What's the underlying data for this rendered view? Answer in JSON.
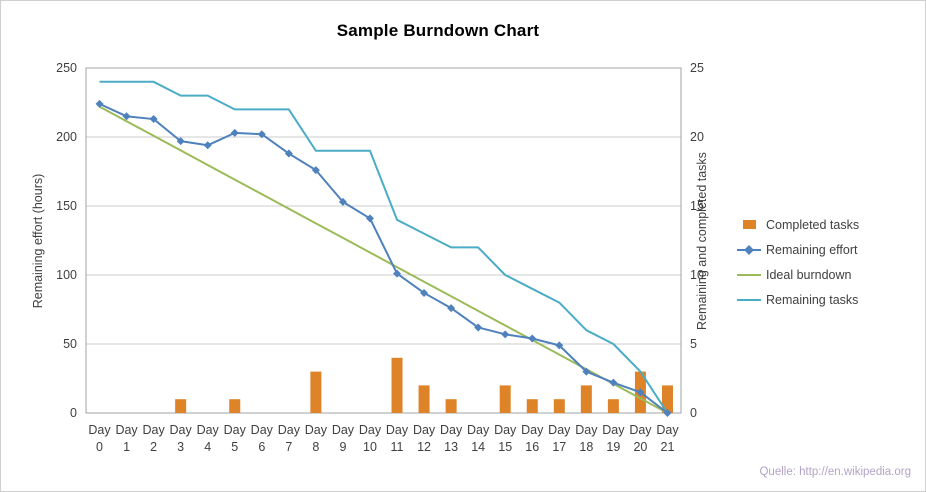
{
  "source_note": "Quelle: http://en.wikipedia.org",
  "chart_data": {
    "type": "line",
    "title": "Sample Burndown Chart",
    "xlabel": "",
    "ylabel_left": "Remaining effort (hours)",
    "ylabel_right": "Remaining and completed tasks",
    "ylim_left": [
      0,
      250
    ],
    "yticks_left": [
      0,
      50,
      100,
      150,
      200,
      250
    ],
    "ylim_right": [
      0,
      25
    ],
    "yticks_right": [
      0,
      5,
      10,
      15,
      20,
      25
    ],
    "grid": true,
    "legend_position": "right",
    "x_categories": [
      "Day 0",
      "Day 1",
      "Day 2",
      "Day 3",
      "Day 4",
      "Day 5",
      "Day 6",
      "Day 7",
      "Day 8",
      "Day 9",
      "Day 10",
      "Day 11",
      "Day 12",
      "Day 13",
      "Day 14",
      "Day 15",
      "Day 16",
      "Day 17",
      "Day 18",
      "Day 19",
      "Day 20",
      "Day 21"
    ],
    "colors": {
      "grid": "#cdcdcd",
      "plot_border": "#a3a3a3",
      "axis_text": "#3f3f3f",
      "title": "#000000",
      "source_note": "#b3a2c7"
    },
    "series": [
      {
        "name": "Completed tasks",
        "type": "bar",
        "axis": "right",
        "color": "#de8327",
        "z": 1,
        "values": [
          0,
          0,
          0,
          1,
          0,
          1,
          0,
          0,
          3,
          0,
          0,
          4,
          2,
          1,
          0,
          2,
          1,
          1,
          2,
          1,
          3,
          2
        ]
      },
      {
        "name": "Remaining effort",
        "type": "line",
        "marker": "diamond",
        "axis": "left",
        "color": "#4f81bd",
        "z": 4,
        "values": [
          224,
          215,
          213,
          197,
          194,
          203,
          202,
          188,
          176,
          153,
          141,
          101,
          87,
          76,
          62,
          57,
          54,
          49,
          30,
          22,
          15,
          0
        ]
      },
      {
        "name": "Ideal burndown",
        "type": "line",
        "axis": "left",
        "color": "#9bbb59",
        "z": 2,
        "values": [
          222,
          211.4,
          200.9,
          190.3,
          179.7,
          169.1,
          158.6,
          148,
          137.4,
          126.9,
          116.3,
          105.7,
          95.1,
          84.6,
          74,
          63.4,
          52.9,
          42.3,
          31.7,
          21.1,
          10.6,
          0
        ]
      },
      {
        "name": "Remaining tasks",
        "type": "line",
        "axis": "right",
        "color": "#4bacc6",
        "z": 3,
        "values": [
          24,
          24,
          24,
          23,
          23,
          22,
          22,
          22,
          19,
          19,
          19,
          14,
          13,
          12,
          12,
          10,
          9,
          8,
          6,
          5,
          3,
          0
        ]
      }
    ]
  }
}
